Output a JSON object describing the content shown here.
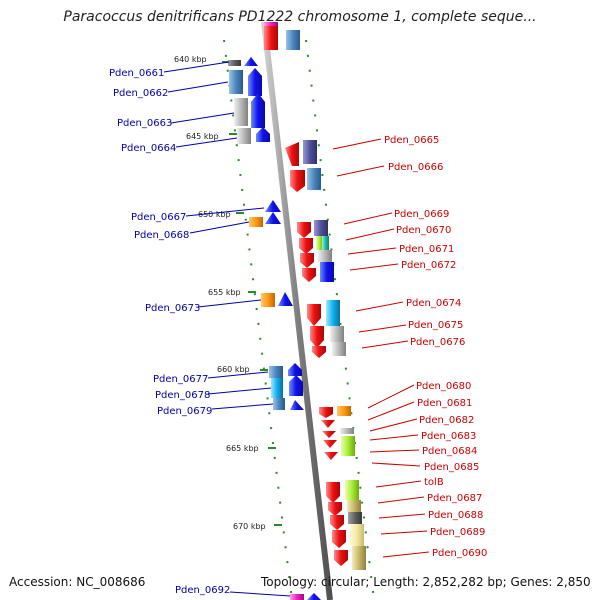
{
  "title": "Paracoccus denitrificans PD1222 chromosome 1, complete seque...",
  "footer": {
    "accession": "Accession: NC_008686",
    "summary": "Topology: circular; Length: 2,852,282 bp; Genes: 2,850"
  },
  "kbp_markers": [
    "640 kbp",
    "645 kbp",
    "650 kbp",
    "655 kbp",
    "660 kbp",
    "665 kbp",
    "670 kbp"
  ],
  "genes_left": [
    "Pden_0661",
    "Pden_0662",
    "Pden_0663",
    "Pden_0664",
    "Pden_0667",
    "Pden_0668",
    "Pden_0673",
    "Pden_0677",
    "Pden_0678",
    "Pden_0679",
    "Pden_0692"
  ],
  "genes_right": [
    "Pden_0665",
    "Pden_0666",
    "Pden_0669",
    "Pden_0670",
    "Pden_0671",
    "Pden_0672",
    "Pden_0674",
    "Pden_0675",
    "Pden_0676",
    "Pden_0680",
    "Pden_0681",
    "Pden_0682",
    "Pden_0683",
    "Pden_0684",
    "Pden_0685",
    "tolB",
    "Pden_0687",
    "Pden_0688",
    "Pden_0689",
    "Pden_0690"
  ],
  "colors": {
    "forward_strand_label": "#0000aa",
    "reverse_strand_label": "#cc0000",
    "forward_gene": "#1010ee",
    "reverse_gene": "#ee1010",
    "dna_backbone": "#888888",
    "ticks": "#2a8a2a"
  }
}
